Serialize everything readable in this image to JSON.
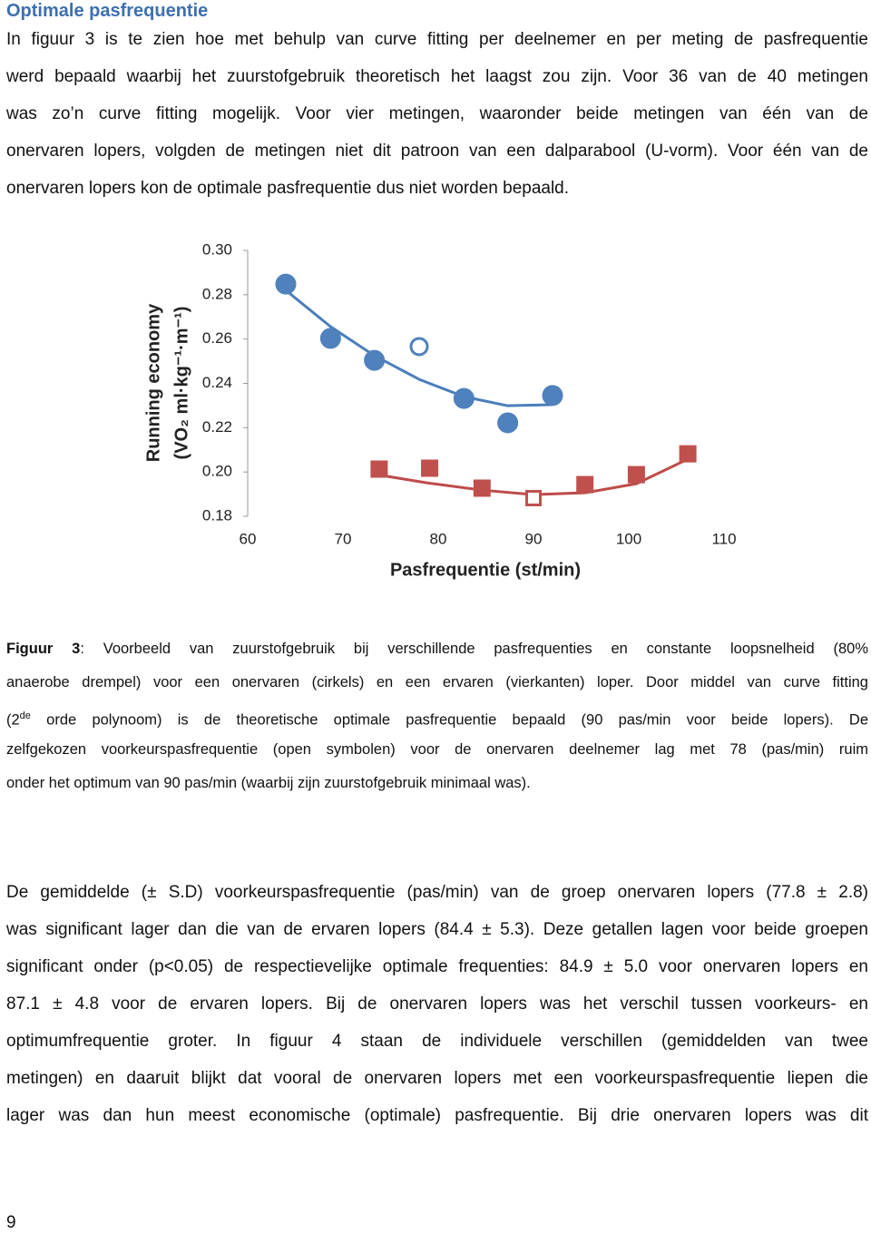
{
  "heading": "Optimale pasfrequentie",
  "paragraph1": [
    "In figuur 3 is te zien hoe met behulp van curve fitting per deelnemer en per meting de pasfrequentie",
    "werd bepaald waarbij het zuurstofgebruik theoretisch het laagst zou zijn. Voor 36 van de 40 metingen",
    "was zo’n curve fitting mogelijk. Voor vier metingen, waaronder beide metingen van één van de",
    "onervaren lopers, volgden de metingen niet dit patroon van een dalparabool (U-vorm). Voor één van de",
    "onervaren lopers kon de optimale pasfrequentie dus niet worden bepaald."
  ],
  "chart_data": {
    "type": "scatter",
    "xlabel": "Pasfrequentie (st/min)",
    "ylabel": [
      "Running economy",
      "(VO₂ ml·kg⁻¹·m⁻¹)"
    ],
    "xlim": [
      60,
      110
    ],
    "xticks": [
      60,
      70,
      80,
      90,
      100,
      110
    ],
    "ylim": [
      0.18,
      0.3
    ],
    "yticks": [
      0.18,
      {
        "value": 0.2,
        "label": "0.20"
      },
      0.22,
      0.24,
      0.26,
      0.28,
      {
        "value": 0.3,
        "label": "0.30"
      }
    ],
    "grid": false,
    "series": [
      {
        "color": "#4a7ebb",
        "marker": "none",
        "line": true,
        "x": [
          64.0,
          68.7,
          73.3,
          78.0,
          82.7,
          87.3,
          92.0
        ],
        "values": [
          0.282,
          0.2656,
          0.2525,
          0.2418,
          0.234,
          0.2299,
          0.2304
        ]
      },
      {
        "color": "#be4b48",
        "marker": "none",
        "line": true,
        "x": [
          73.0,
          78.8,
          84.6,
          90.0,
          95.4,
          100.8,
          106.4
        ],
        "values": [
          0.1992,
          0.1951,
          0.1918,
          0.1898,
          0.1906,
          0.1947,
          0.2062
        ]
      },
      {
        "color": "#4f81bd",
        "marker": "circle",
        "filled": true,
        "x": [
          64.0,
          68.7,
          73.3,
          82.7,
          87.3,
          92.0
        ],
        "values": [
          0.2848,
          0.2603,
          0.2504,
          0.2332,
          0.2222,
          0.2345
        ]
      },
      {
        "color": "#4f81bd",
        "marker": "circle",
        "filled": false,
        "x": [
          78.0
        ],
        "values": [
          0.2566
        ]
      },
      {
        "color": "#c0504d",
        "marker": "square",
        "filled": true,
        "x": [
          73.8,
          79.1,
          84.6,
          95.4,
          100.8,
          106.2
        ],
        "values": [
          0.2013,
          0.2017,
          0.1927,
          0.1943,
          0.1988,
          0.2082
        ]
      },
      {
        "color": "#c0504d",
        "marker": "square",
        "filled": false,
        "x": [
          90.0
        ],
        "values": [
          0.1882
        ]
      }
    ]
  },
  "caption": {
    "label": "Figuur 3",
    "lines": [
      ": Voorbeeld van zuurstofgebruik bij verschillende pasfrequenties en constante loopsnelheid (80%",
      "anaerobe drempel) voor een onervaren (cirkels) en een ervaren (vierkanten) loper. Door middel van curve fitting",
      {
        "pre": "(2",
        "sup": "de",
        "post": " orde polynoom) is de theoretische optimale pasfrequentie bepaald (90 pas/min voor beide lopers). De"
      },
      "zelfgekozen voorkeurspasfrequentie (open symbolen) voor de onervaren deelnemer lag met 78 (pas/min) ruim",
      "onder het optimum van 90 pas/min (waarbij zijn zuurstofgebruik minimaal was)."
    ]
  },
  "paragraph2": [
    "De gemiddelde (± S.D)  voorkeurspasfrequentie (pas/min) van de groep onervaren lopers (77.8 ± 2.8)",
    "was significant lager dan die van de ervaren lopers (84.4 ± 5.3). Deze getallen lagen voor beide groepen",
    "significant onder (p<0.05) de respectievelijke optimale frequenties: 84.9 ± 5.0 voor onervaren lopers en",
    "87.1 ± 4.8 voor de ervaren lopers. Bij de onervaren lopers was het verschil tussen voorkeurs- en",
    "optimumfrequentie groter. In figuur 4 staan de individuele verschillen (gemiddelden van twee",
    "metingen) en daaruit blijkt dat vooral de onervaren lopers met een voorkeurspasfrequentie liepen die",
    "lager was dan hun meest economische (optimale) pasfrequentie. Bij drie onervaren lopers was dit"
  ],
  "page_number": "9"
}
